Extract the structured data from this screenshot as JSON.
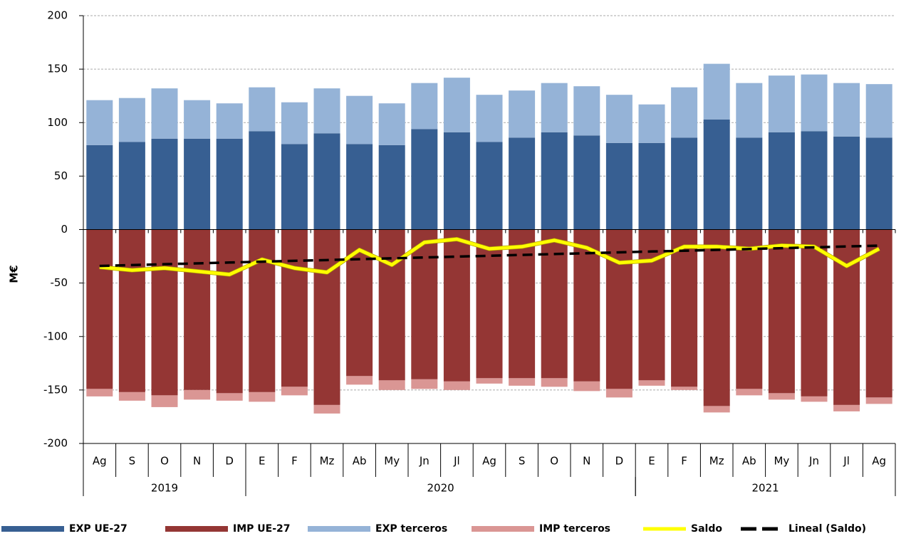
{
  "chart_data": {
    "type": "bar",
    "stacked": true,
    "y_label": "M€",
    "categories": [
      "Ag",
      "S",
      "O",
      "N",
      "D",
      "E",
      "F",
      "Mz",
      "Ab",
      "My",
      "Jn",
      "Jl",
      "Ag",
      "S",
      "O",
      "N",
      "D",
      "E",
      "F",
      "Mz",
      "Ab",
      "My",
      "Jn",
      "Jl",
      "Ag"
    ],
    "groups": [
      {
        "label": "2019",
        "count": 5
      },
      {
        "label": "2020",
        "count": 12
      },
      {
        "label": "2021",
        "count": 8
      }
    ],
    "series": [
      {
        "name": "EXP UE-27",
        "color": "#375f92",
        "values": [
          79,
          82,
          85,
          85,
          85,
          92,
          80,
          90,
          80,
          79,
          94,
          91,
          82,
          86,
          91,
          88,
          81,
          81,
          86,
          103,
          86,
          91,
          92,
          87,
          86
        ]
      },
      {
        "name": "IMP UE-27",
        "color": "#943634",
        "values": [
          -149,
          -152,
          -155,
          -150,
          -153,
          -152,
          -147,
          -164,
          -137,
          -141,
          -140,
          -142,
          -139,
          -139,
          -139,
          -142,
          -149,
          -141,
          -147,
          -165,
          -149,
          -153,
          -156,
          -164,
          -157
        ]
      },
      {
        "name": "EXP terceros",
        "color": "#95b3d7",
        "values": [
          42,
          41,
          47,
          36,
          33,
          41,
          39,
          42,
          45,
          39,
          43,
          51,
          44,
          44,
          46,
          46,
          45,
          36,
          47,
          52,
          51,
          53,
          53,
          50,
          50
        ]
      },
      {
        "name": "IMP terceros",
        "color": "#da9694",
        "values": [
          -7,
          -8,
          -11,
          -9,
          -7,
          -9,
          -8,
          -8,
          -8,
          -9,
          -9,
          -8,
          -5,
          -7,
          -8,
          -9,
          -8,
          -5,
          -3,
          -6,
          -6,
          -6,
          -5,
          -6,
          -6
        ]
      },
      {
        "name": "Saldo",
        "type": "line",
        "color": "#ffff00",
        "values": [
          -35,
          -38,
          -36,
          -39,
          -42,
          -28,
          -36,
          -40,
          -19,
          -33,
          -12,
          -9,
          -18,
          -16,
          -10,
          -17,
          -31,
          -29,
          -16,
          -16,
          -18,
          -15,
          -16,
          -34,
          -18
        ]
      },
      {
        "name": "Lineal (Saldo)",
        "type": "line",
        "dashed": true,
        "color": "#000000",
        "values": [
          -34,
          -33.2,
          -32.4,
          -31.6,
          -30.8,
          -30,
          -29.2,
          -28.5,
          -27.7,
          -26.9,
          -26.1,
          -25.3,
          -24.5,
          -23.7,
          -22.9,
          -22.1,
          -21.3,
          -20.5,
          -19.8,
          -19,
          -18.2,
          -17.4,
          -16.6,
          -15.8,
          -15
        ]
      }
    ],
    "ylim": [
      -200,
      200
    ],
    "yticks": [
      -200,
      -150,
      -100,
      -50,
      0,
      50,
      100,
      150,
      200
    ],
    "grid": true
  }
}
